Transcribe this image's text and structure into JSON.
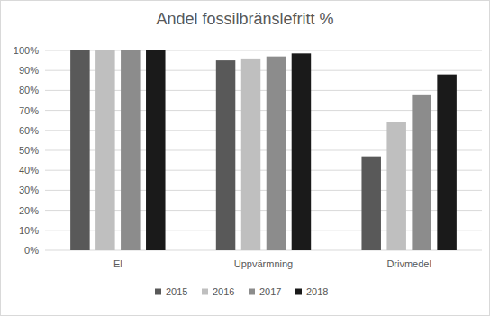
{
  "chart_data": {
    "type": "bar",
    "title": "Andel fossilbränslefritt %",
    "categories": [
      "El",
      "Uppvärmning",
      "Drivmedel"
    ],
    "series": [
      {
        "name": "2015",
        "color": "#595959",
        "values": [
          100,
          95,
          47
        ]
      },
      {
        "name": "2016",
        "color": "#bfbfbf",
        "values": [
          100,
          96,
          64
        ]
      },
      {
        "name": "2017",
        "color": "#8c8c8c",
        "values": [
          100,
          97,
          78
        ]
      },
      {
        "name": "2018",
        "color": "#1a1a1a",
        "values": [
          100,
          98.5,
          88
        ]
      }
    ],
    "ylim": [
      0,
      100
    ],
    "yticks": [
      {
        "value": 0,
        "label": "0%"
      },
      {
        "value": 10,
        "label": "10%"
      },
      {
        "value": 20,
        "label": "20%"
      },
      {
        "value": 30,
        "label": "30%"
      },
      {
        "value": 40,
        "label": "40%"
      },
      {
        "value": 50,
        "label": "50%"
      },
      {
        "value": 60,
        "label": "60%"
      },
      {
        "value": 70,
        "label": "70%"
      },
      {
        "value": 80,
        "label": "80%"
      },
      {
        "value": 90,
        "label": "90%"
      },
      {
        "value": 100,
        "label": "100%"
      }
    ],
    "grid": true,
    "legend": "bottom"
  }
}
